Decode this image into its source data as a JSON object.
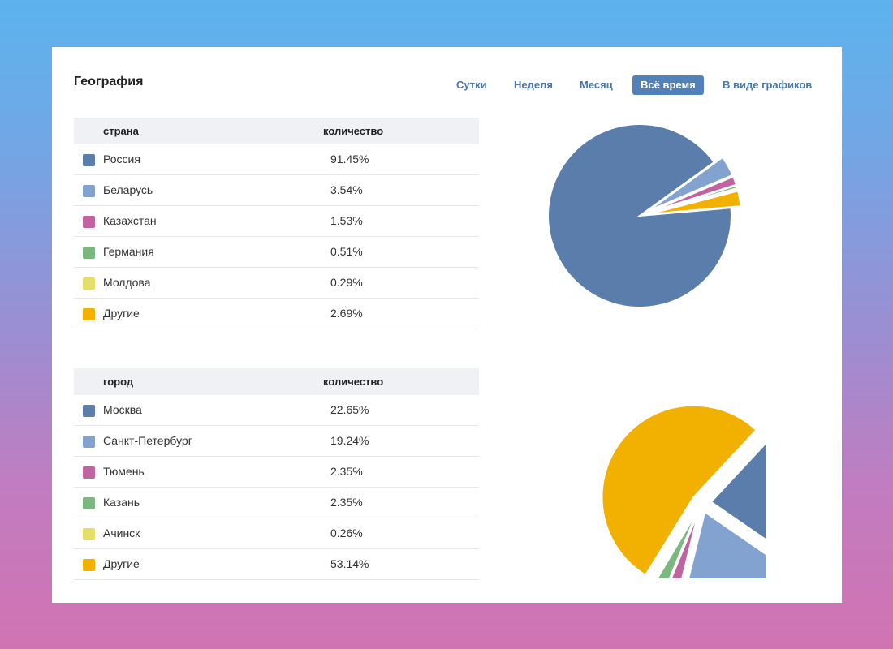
{
  "header": {
    "title": "География",
    "tabs": [
      {
        "label": "Сутки",
        "active": false
      },
      {
        "label": "Неделя",
        "active": false
      },
      {
        "label": "Месяц",
        "active": false
      },
      {
        "label": "Всё время",
        "active": true
      },
      {
        "label": "В виде графиков",
        "active": false
      }
    ]
  },
  "countries": {
    "col_name": "страна",
    "col_value": "количество",
    "rows": [
      {
        "label": "Россия",
        "value": "91.45%",
        "color": "#5a7dab"
      },
      {
        "label": "Беларусь",
        "value": "3.54%",
        "color": "#82a2cf"
      },
      {
        "label": "Казахстан",
        "value": "1.53%",
        "color": "#c0639f"
      },
      {
        "label": "Германия",
        "value": "0.51%",
        "color": "#7ab87f"
      },
      {
        "label": "Молдова",
        "value": "0.29%",
        "color": "#e5df6a"
      },
      {
        "label": "Другие",
        "value": "2.69%",
        "color": "#f2b000"
      }
    ]
  },
  "cities": {
    "col_name": "город",
    "col_value": "количество",
    "rows": [
      {
        "label": "Москва",
        "value": "22.65%",
        "color": "#5a7dab"
      },
      {
        "label": "Санкт-Петербург",
        "value": "19.24%",
        "color": "#82a2cf"
      },
      {
        "label": "Тюмень",
        "value": "2.35%",
        "color": "#c0639f"
      },
      {
        "label": "Казань",
        "value": "2.35%",
        "color": "#7ab87f"
      },
      {
        "label": "Ачинск",
        "value": "0.26%",
        "color": "#e5df6a"
      },
      {
        "label": "Другие",
        "value": "53.14%",
        "color": "#f2b000"
      }
    ]
  },
  "chart_data": [
    {
      "type": "pie",
      "categories": [
        "Россия",
        "Беларусь",
        "Казахстан",
        "Германия",
        "Молдова",
        "Другие"
      ],
      "values": [
        91.45,
        3.54,
        1.53,
        0.51,
        0.29,
        2.69
      ],
      "colors": [
        "#5a7dab",
        "#82a2cf",
        "#c0639f",
        "#7ab87f",
        "#e5df6a",
        "#f2b000"
      ]
    },
    {
      "type": "pie",
      "categories": [
        "Москва",
        "Санкт-Петербург",
        "Тюмень",
        "Казань",
        "Ачинск",
        "Другие"
      ],
      "values": [
        22.65,
        19.24,
        2.35,
        2.35,
        0.26,
        53.14
      ],
      "colors": [
        "#5a7dab",
        "#82a2cf",
        "#c0639f",
        "#7ab87f",
        "#e5df6a",
        "#f2b000"
      ]
    }
  ]
}
